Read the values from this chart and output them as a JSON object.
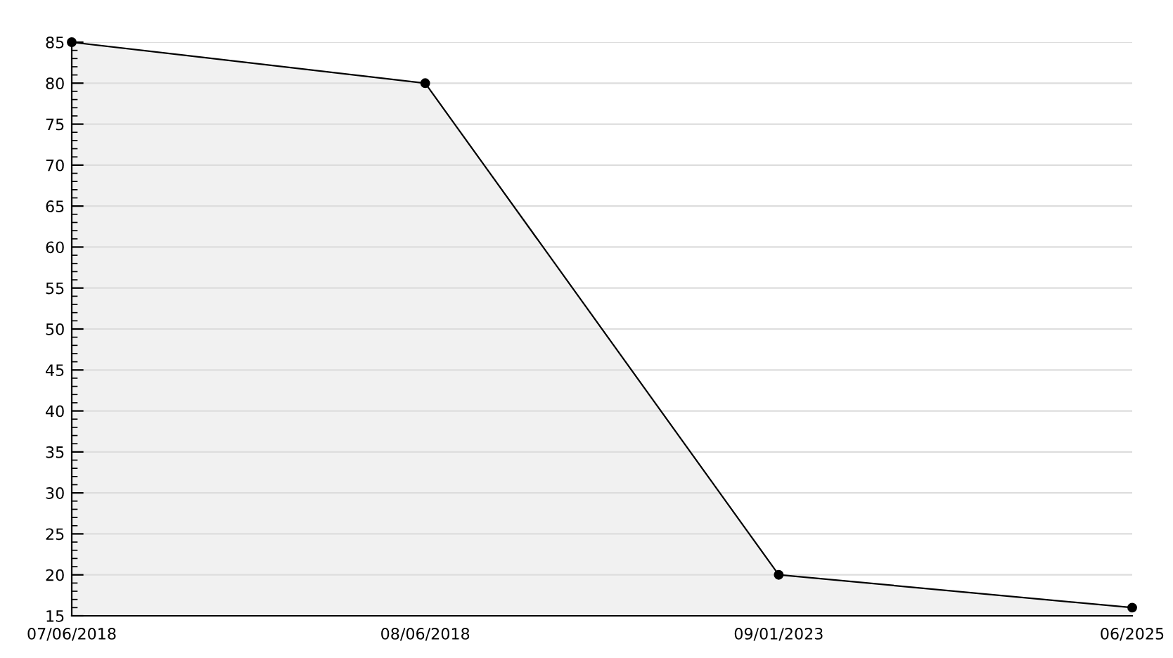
{
  "chart_data": {
    "type": "area",
    "categories": [
      "07/06/2018",
      "08/06/2018",
      "09/01/2023",
      "06/2025"
    ],
    "series": [
      {
        "color": "#000000",
        "values": [
          85,
          80,
          20,
          16
        ]
      }
    ],
    "ylim": [
      15,
      85
    ],
    "yticks": [
      15,
      20,
      25,
      30,
      35,
      40,
      45,
      50,
      55,
      60,
      65,
      70,
      75,
      80,
      85
    ],
    "grid": "y",
    "marker": "circle",
    "line_style": "solid"
  }
}
